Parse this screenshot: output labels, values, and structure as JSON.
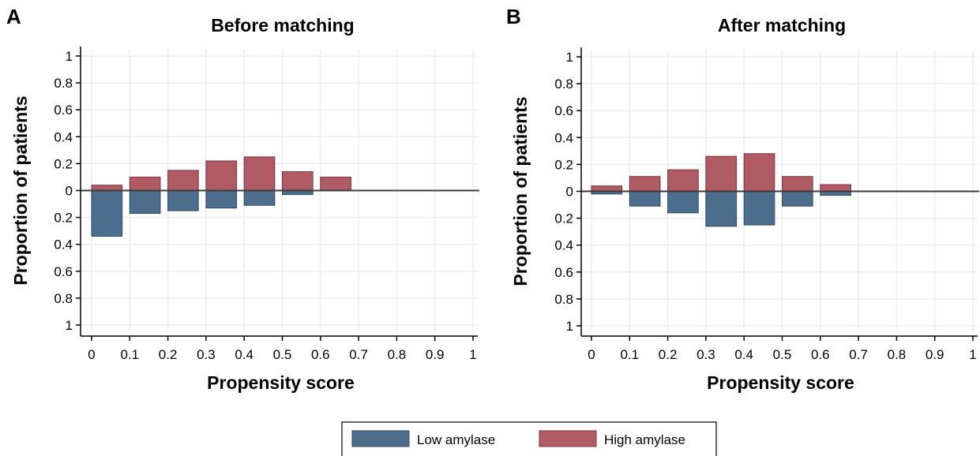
{
  "chart_data": [
    {
      "type": "bar",
      "panel_label": "A",
      "title": "Before matching",
      "xlabel": "Propensity score",
      "ylabel": "Proportion of patients",
      "x_ticks": [
        "0",
        "0.1",
        "0.2",
        "0.3",
        "0.4",
        "0.5",
        "0.6",
        "0.7",
        "0.8",
        "0.9",
        "1"
      ],
      "y_ticks_upper": [
        "1",
        "0.8",
        "0.6",
        "0.4",
        "0.2",
        "0"
      ],
      "y_ticks_lower": [
        "0.2",
        "0.4",
        "0.6",
        "0.8",
        "1"
      ],
      "xlim": [
        0,
        1
      ],
      "ylim": [
        -1,
        1
      ],
      "grid": true,
      "bin_starts": [
        0,
        0.1,
        0.2,
        0.3,
        0.4,
        0.5,
        0.6
      ],
      "bin_width": 0.08,
      "series": [
        {
          "name": "High amylase",
          "direction": "up",
          "values": [
            0.04,
            0.1,
            0.15,
            0.22,
            0.25,
            0.14,
            0.1
          ]
        },
        {
          "name": "Low amylase",
          "direction": "down",
          "values": [
            0.34,
            0.17,
            0.15,
            0.13,
            0.11,
            0.03,
            0.0
          ]
        }
      ]
    },
    {
      "type": "bar",
      "panel_label": "B",
      "title": "After matching",
      "xlabel": "Propensity score",
      "ylabel": "Proportion of patients",
      "x_ticks": [
        "0",
        "0.1",
        "0.2",
        "0.3",
        "0.4",
        "0.5",
        "0.6",
        "0.7",
        "0.8",
        "0.9",
        "1"
      ],
      "y_ticks_upper": [
        "1",
        "0.8",
        "0.6",
        "0.4",
        "0.2",
        "0"
      ],
      "y_ticks_lower": [
        "0.2",
        "0.4",
        "0.6",
        "0.8",
        "1"
      ],
      "xlim": [
        0,
        1
      ],
      "ylim": [
        -1,
        1
      ],
      "grid": true,
      "bin_starts": [
        0,
        0.1,
        0.2,
        0.3,
        0.4,
        0.5,
        0.6
      ],
      "bin_width": 0.08,
      "series": [
        {
          "name": "High amylase",
          "direction": "up",
          "values": [
            0.04,
            0.11,
            0.16,
            0.26,
            0.28,
            0.11,
            0.05
          ]
        },
        {
          "name": "Low amylase",
          "direction": "down",
          "values": [
            0.02,
            0.11,
            0.16,
            0.26,
            0.25,
            0.11,
            0.03
          ]
        }
      ]
    }
  ],
  "legend": {
    "placement": "bottom-center",
    "items": [
      {
        "label": "Low amylase",
        "color": "#4d6d8c"
      },
      {
        "label": "High amylase",
        "color": "#b05a64"
      }
    ]
  },
  "colors": {
    "low_fill": "#4d6d8c",
    "low_edge": "#2c4a68",
    "high_fill": "#b05a64",
    "high_edge": "#7a3440",
    "grid": "#e8eef2",
    "zero_line": "#3a3a3a"
  }
}
